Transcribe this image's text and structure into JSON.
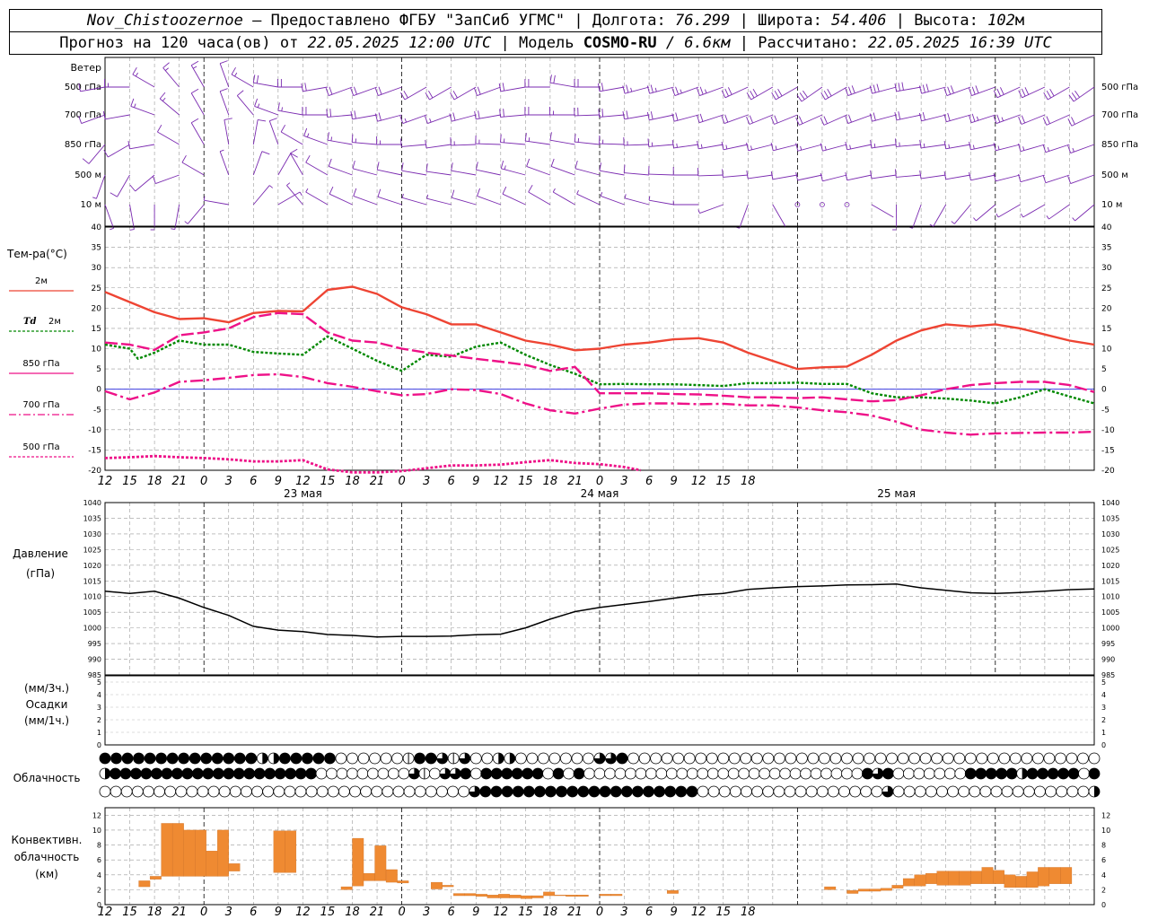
{
  "header": {
    "line1": {
      "station": "Nov_Chistoozernoe",
      "provider": "– Предоставлено ФГБУ \"ЗапСиб УГМС\" |",
      "lon_label": "Долгота:",
      "lon": "76.299",
      "sep1": "|",
      "lat_label": "Широта:",
      "lat": "54.406",
      "sep2": "|",
      "alt_label": "Высота:",
      "alt": "102",
      "alt_unit": "м"
    },
    "line2": {
      "fc_label": "Прогноз на 120 часа(ов) от",
      "fc_time": "22.05.2025 12:00 UTC",
      "model_label": "| Модель",
      "model": "COSMO-RU",
      "model_res": "/ 6.6км",
      "calc_label": "| Рассчитано:",
      "calc_time": "22.05.2025 16:39 UTC"
    }
  },
  "colors": {
    "temp2m": "#ee4433",
    "td2m": "#008800",
    "t850": "#ee1188",
    "t700": "#ee1188",
    "t500": "#ee1188",
    "pressure": "#000000",
    "barbs": "#7a2ab0",
    "conv": "#ef8a32",
    "zero_line": "#2222dd"
  },
  "chart_data": {
    "type": "meteogram",
    "x_hours_labels": [
      "12",
      "15",
      "18",
      "21",
      "0",
      "3",
      "6",
      "9",
      "12",
      "15",
      "18",
      "21",
      "0",
      "3",
      "6",
      "9",
      "12",
      "15",
      "18",
      "21",
      "0",
      "3",
      "6",
      "9",
      "12",
      "15",
      "18"
    ],
    "date_labels": [
      "23 мая",
      "24 мая",
      "25 мая"
    ],
    "wind": {
      "title": "Ветер",
      "levels": [
        "500 гПа",
        "700 гПа",
        "850 гПа",
        "500 м",
        "10  м"
      ],
      "icon": "wind-barb-icon"
    },
    "temperature": {
      "ylabel": "Тем-ра(°C)",
      "ylim": [
        -20,
        40
      ],
      "ticks": [
        -20,
        -15,
        -10,
        -5,
        0,
        5,
        10,
        15,
        20,
        25,
        30,
        35,
        40
      ],
      "legend": [
        {
          "label": "2м",
          "style": "solid"
        },
        {
          "label": "Td",
          "label2": "2м",
          "style": "dotted"
        },
        {
          "label": "850 гПа",
          "style": "solid"
        },
        {
          "label": "700 гПа",
          "style": "dashdot"
        },
        {
          "label": "500 гПа",
          "style": "dotted"
        }
      ],
      "series": [
        {
          "key": "t2m",
          "x": [
            0,
            3,
            6,
            9,
            12,
            15,
            18,
            21,
            24,
            27,
            30,
            33,
            36,
            39,
            42,
            45,
            48,
            51,
            54,
            57,
            60,
            63,
            66,
            69,
            72,
            75,
            78,
            81,
            84,
            87,
            90,
            93,
            96,
            99,
            102,
            105,
            108,
            111,
            114,
            117,
            120
          ],
          "values": [
            24,
            21.5,
            19,
            17.3,
            17.5,
            16.5,
            18.8,
            19.3,
            19.2,
            24.5,
            25.3,
            23.5,
            20.2,
            18.5,
            16,
            16,
            14,
            12,
            11,
            9.6,
            10,
            11,
            11.5,
            12.3,
            12.6,
            11.5,
            9,
            7,
            5,
            5.4,
            5.6,
            8.5,
            12,
            14.5,
            16,
            15.5,
            16,
            15,
            13.5,
            12,
            11
          ]
        },
        {
          "key": "td2m",
          "x": [
            0,
            3,
            4,
            6,
            9,
            12,
            15,
            18,
            21,
            24,
            27,
            30,
            33,
            36,
            39,
            42,
            45,
            48,
            51,
            54,
            57,
            60,
            63,
            66,
            69,
            72,
            75,
            78,
            81,
            84,
            87,
            90,
            93,
            96,
            99,
            102,
            105,
            108,
            111,
            114,
            117,
            120
          ],
          "values": [
            11,
            10,
            7.5,
            9,
            12,
            11,
            11,
            9.2,
            8.8,
            8.5,
            13,
            10,
            7,
            4.5,
            8.5,
            8,
            10.5,
            11.5,
            8.5,
            6,
            3.8,
            1.2,
            1.3,
            1.2,
            1.2,
            1,
            0.8,
            1.5,
            1.5,
            1.6,
            1.3,
            1.3,
            -1,
            -2,
            -2,
            -2.3,
            -2.8,
            -3.5,
            -2,
            0,
            -1.8,
            -3.5
          ]
        },
        {
          "key": "t850",
          "x": [
            0,
            3,
            6,
            9,
            12,
            15,
            18,
            21,
            24,
            27,
            30,
            33,
            36,
            39,
            42,
            45,
            48,
            51,
            54,
            57,
            60,
            63,
            66,
            69,
            72,
            75,
            78,
            81,
            84,
            87,
            90,
            93,
            96,
            99,
            102,
            105,
            108,
            111,
            114,
            117,
            120
          ],
          "values": [
            11.5,
            11,
            9.7,
            13.3,
            14,
            15,
            17.8,
            18.8,
            18.5,
            14,
            12,
            11.5,
            10,
            9,
            8.3,
            7.5,
            6.8,
            6,
            4.5,
            5.5,
            -1,
            -1,
            -1,
            -1.2,
            -1.3,
            -1.6,
            -2,
            -2,
            -2.2,
            -2,
            -2.5,
            -3,
            -2.7,
            -1.5,
            0,
            1,
            1.5,
            1.8,
            1.8,
            1,
            -0.7
          ]
        },
        {
          "key": "t700",
          "x": [
            0,
            3,
            6,
            9,
            12,
            15,
            18,
            21,
            24,
            27,
            30,
            33,
            36,
            39,
            42,
            45,
            48,
            51,
            54,
            57,
            60,
            63,
            66,
            69,
            72,
            75,
            78,
            81,
            84,
            87,
            90,
            93,
            96,
            99,
            102,
            105,
            108,
            111,
            114,
            117,
            120
          ],
          "values": [
            -0.5,
            -2.5,
            -0.8,
            1.8,
            2.2,
            2.8,
            3.5,
            3.7,
            3,
            1.5,
            0.6,
            -0.5,
            -1.5,
            -1.2,
            0,
            -0.2,
            -1.2,
            -3.5,
            -5.2,
            -6,
            -4.8,
            -3.8,
            -3.5,
            -3.5,
            -3.7,
            -3.6,
            -4,
            -4,
            -4.5,
            -5.2,
            -5.7,
            -6.5,
            -8,
            -10,
            -10.7,
            -11.2,
            -10.9,
            -10.8,
            -10.7,
            -10.7,
            -10.5
          ]
        },
        {
          "key": "t500",
          "x": [
            0,
            3,
            6,
            9,
            12,
            15,
            18,
            21,
            24,
            27,
            30,
            33,
            36,
            42,
            45,
            48,
            51,
            54,
            57,
            60,
            63,
            65
          ],
          "values": [
            -17,
            -16.8,
            -16.5,
            -16.8,
            -17,
            -17.3,
            -17.8,
            -17.8,
            -17.5,
            -19.8,
            -20.5,
            -20.5,
            -20.2,
            -18.8,
            -18.8,
            -18.6,
            -18,
            -17.5,
            -18.2,
            -18.5,
            -19.2,
            -20
          ]
        }
      ]
    },
    "pressure": {
      "ylabel": "Давление",
      "unit": "(гПа)",
      "ylim": [
        985,
        1040
      ],
      "ticks": [
        985,
        990,
        995,
        1000,
        1005,
        1010,
        1015,
        1020,
        1025,
        1030,
        1035,
        1040
      ],
      "x": [
        0,
        3,
        6,
        9,
        12,
        15,
        18,
        21,
        24,
        27,
        30,
        33,
        36,
        39,
        42,
        45,
        48,
        51,
        54,
        57,
        60,
        63,
        66,
        69,
        72,
        75,
        78,
        81,
        84,
        87,
        90,
        93,
        96,
        99,
        102,
        105,
        108,
        111,
        114,
        117,
        120
      ],
      "values": [
        1011.7,
        1011,
        1011.7,
        1009.5,
        1006.5,
        1004,
        1000.5,
        999.3,
        998.8,
        997.9,
        997.6,
        997.1,
        997.3,
        997.3,
        997.4,
        997.8,
        998,
        1000,
        1002.8,
        1005.2,
        1006.5,
        1007.5,
        1008.4,
        1009.5,
        1010.5,
        1011,
        1012.3,
        1012.8,
        1013.2,
        1013.4,
        1013.7,
        1013.8,
        1014,
        1012.8,
        1012,
        1011.2,
        1011,
        1011.3,
        1011.7,
        1012.2,
        1012.4
      ]
    },
    "precip": {
      "ylabel1": "(мм/3ч.)",
      "ylabel2": "Осадки",
      "ylabel3": "(мм/1ч.)",
      "ylim": [
        0,
        5
      ],
      "ticks": [
        0,
        1,
        2,
        3,
        4,
        5
      ],
      "values": []
    },
    "cloud": {
      "label": "Облачность",
      "rows": [
        "FFFFFFFFFFFFFFHHFFFFFEEEEEEMFFTMTEEHHEEEEEEETTFEEEEEEEEEEEEEEEEEEEEEEEEEEEEEEEEEEEEEEEEEE",
        "HFFFFFFFFFFFFFFFFFFFFEEEEEEEEETMETTFEFFFFFFEFEFEEEEEEEEEEEEEEEEEEEEEEEEEEEFTFEEEEEEEFFFFFHFFFFFEF",
        "EEEEEEEEEEEEEEEEEEEEEEEEEEEEEEEEEETFFFFFFFFFFFFFFFFFFFFEEEEEEEEEEEEEEEEETEEEEEEEEEEEEEEEEEEH"
      ]
    },
    "convective": {
      "ylabel1": "Конвективн.",
      "ylabel2": "облачность",
      "ylabel3": "(км)",
      "ylim": [
        0,
        13
      ],
      "ticks": [
        0,
        2,
        4,
        6,
        8,
        10,
        12
      ],
      "unit": "km",
      "bars": [
        [
          3,
          2.4,
          3.2
        ],
        [
          4,
          3.4,
          3.8
        ],
        [
          5,
          3.8,
          10.9
        ],
        [
          6,
          3.8,
          10.9
        ],
        [
          7,
          3.8,
          10
        ],
        [
          8,
          3.8,
          10
        ],
        [
          9,
          3.8,
          7.2
        ],
        [
          10,
          3.8,
          10
        ],
        [
          11,
          4.5,
          5.5
        ],
        [
          15,
          4.3,
          9.9
        ],
        [
          16,
          4.3,
          9.9
        ],
        [
          21,
          2,
          2.4
        ],
        [
          22,
          2.5,
          8.9
        ],
        [
          23,
          3.2,
          4.2
        ],
        [
          24,
          3.2,
          7.9
        ],
        [
          25,
          3,
          4.7
        ],
        [
          26,
          2.9,
          3.2
        ],
        [
          29,
          2.1,
          3
        ],
        [
          30,
          2.4,
          2.6
        ],
        [
          31,
          1.2,
          1.5
        ],
        [
          32,
          1.2,
          1.5
        ],
        [
          33,
          1.1,
          1.4
        ],
        [
          34,
          0.9,
          1.3
        ],
        [
          35,
          0.9,
          1.4
        ],
        [
          36,
          0.9,
          1.3
        ],
        [
          37,
          0.8,
          1.2
        ],
        [
          38,
          0.9,
          1.2
        ],
        [
          39,
          1.2,
          1.7
        ],
        [
          40,
          1.2,
          1.3
        ],
        [
          41,
          1.1,
          1.3
        ],
        [
          42,
          1.1,
          1.3
        ],
        [
          44,
          1.2,
          1.4
        ],
        [
          45,
          1.2,
          1.4
        ],
        [
          50,
          1.5,
          1.9
        ],
        [
          64,
          2,
          2.4
        ],
        [
          66,
          1.5,
          1.9
        ],
        [
          67,
          1.8,
          2.1
        ],
        [
          68,
          1.8,
          2.1
        ],
        [
          69,
          1.9,
          2.2
        ],
        [
          70,
          2.2,
          2.6
        ],
        [
          71,
          2.5,
          3.5
        ],
        [
          72,
          2.5,
          4
        ],
        [
          73,
          2.8,
          4.2
        ],
        [
          74,
          2.6,
          4.5
        ],
        [
          75,
          2.6,
          4.5
        ],
        [
          76,
          2.6,
          4.5
        ],
        [
          77,
          2.8,
          4.5
        ],
        [
          78,
          2.8,
          5
        ],
        [
          79,
          2.8,
          4.6
        ],
        [
          80,
          2.3,
          4
        ],
        [
          81,
          2.3,
          3.8
        ],
        [
          82,
          2.3,
          4.4
        ],
        [
          83,
          2.5,
          5
        ],
        [
          84,
          2.8,
          5
        ],
        [
          85,
          2.8,
          5
        ]
      ]
    }
  }
}
